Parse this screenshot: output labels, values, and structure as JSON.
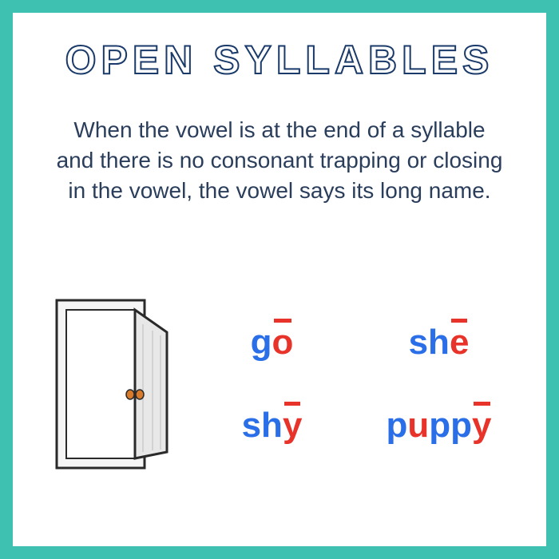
{
  "title": "OPEN  SYLLABLES",
  "description": "When the vowel is at the end of a syllable and there is no consonant trapping or  closing in the vowel, the vowel says its long name.",
  "colors": {
    "border": "#3ec1b0",
    "title_stroke": "#1a3a6a",
    "body_text": "#2a3e5c",
    "consonant": "#2a6fe8",
    "vowel": "#e8332a"
  },
  "words": [
    {
      "segments": [
        {
          "t": "g",
          "k": "c"
        },
        {
          "t": "o",
          "k": "v",
          "macron": true
        }
      ]
    },
    {
      "segments": [
        {
          "t": "sh",
          "k": "c"
        },
        {
          "t": "e",
          "k": "v",
          "macron": true
        }
      ]
    },
    {
      "segments": [
        {
          "t": "sh",
          "k": "c"
        },
        {
          "t": "y",
          "k": "v",
          "macron": true
        }
      ]
    },
    {
      "segments": [
        {
          "t": "p",
          "k": "c"
        },
        {
          "t": "u",
          "k": "v",
          "macron": false
        },
        {
          "t": "pp",
          "k": "c"
        },
        {
          "t": "y",
          "k": "v",
          "macron": true
        }
      ]
    }
  ]
}
